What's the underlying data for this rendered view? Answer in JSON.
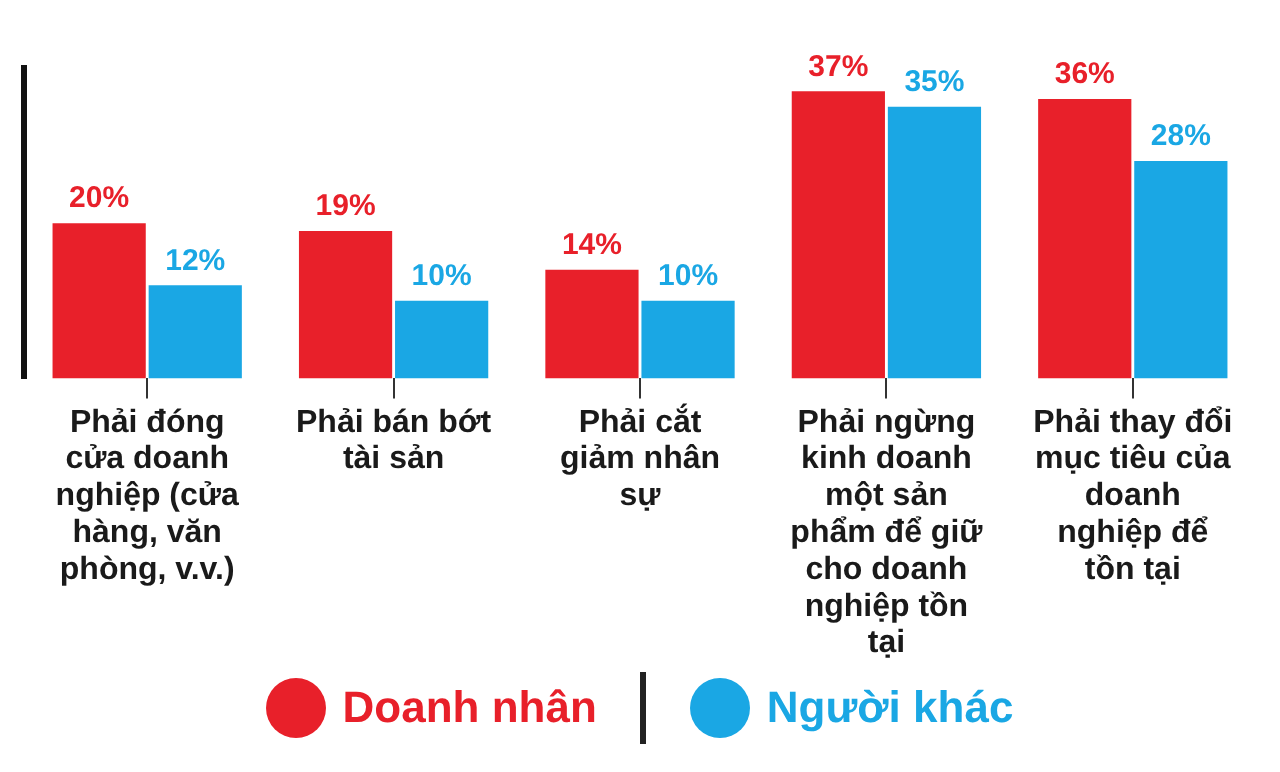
{
  "chart_data": {
    "type": "bar",
    "categories": [
      "Phải đóng cửa doanh nghiệp (cửa hàng, văn phòng, v.v.)",
      "Phải bán bớt tài sản",
      "Phải cắt giảm nhân sự",
      "Phải ngừng kinh doanh một sản phẩm để giữ cho doanh nghiệp tồn tại",
      "Phải thay đổi mục tiêu của doanh nghiệp để tồn tại"
    ],
    "series": [
      {
        "name": "Doanh nhân",
        "color": "#e8202a",
        "values": [
          20,
          19,
          14,
          37,
          36
        ],
        "value_labels": [
          "20%",
          "19%",
          "14%",
          "37%",
          "36%"
        ]
      },
      {
        "name": "Người khác",
        "color": "#1aa7e4",
        "values": [
          12,
          10,
          10,
          35,
          28
        ],
        "value_labels": [
          "12%",
          "10%",
          "10%",
          "35%",
          "28%"
        ]
      }
    ],
    "tick_labels": "x",
    "legend": "bottom",
    "grid": false
  }
}
